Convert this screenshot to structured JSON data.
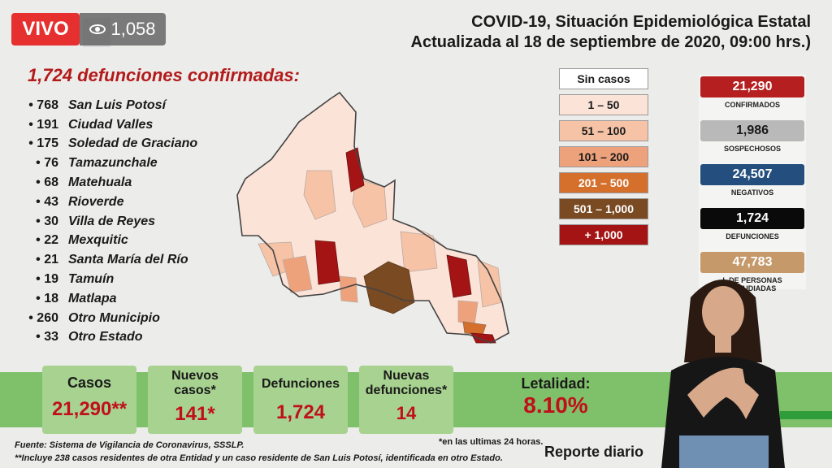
{
  "stream": {
    "live_label": "VIVO",
    "viewers": "1,058"
  },
  "header": {
    "line1": "COVID-19, Situación Epidemiológica Estatal",
    "line2": "Actualizada al 18 de septiembre de 2020, 09:00 hrs.)"
  },
  "deaths": {
    "heading": "1,724 defunciones confirmadas:",
    "items": [
      {
        "count": "768",
        "name": "San Luis Potosí"
      },
      {
        "count": "191",
        "name": "Ciudad Valles"
      },
      {
        "count": "175",
        "name": "Soledad de Graciano"
      },
      {
        "count": "76",
        "name": "Tamazunchale"
      },
      {
        "count": "68",
        "name": "Matehuala"
      },
      {
        "count": "43",
        "name": "Rioverde"
      },
      {
        "count": "30",
        "name": "Villa de Reyes"
      },
      {
        "count": "22",
        "name": "Mexquitic"
      },
      {
        "count": "21",
        "name": "Santa María del Río"
      },
      {
        "count": "19",
        "name": "Tamuín"
      },
      {
        "count": "18",
        "name": "Matlapa"
      },
      {
        "count": "260",
        "name": "Otro Municipio"
      },
      {
        "count": "33",
        "name": "Otro Estado"
      }
    ]
  },
  "legend": {
    "items": [
      {
        "label": "Sin casos",
        "color": "#ffffff",
        "text": "#1a1a1a"
      },
      {
        "label": "1 – 50",
        "color": "#fbe3d8",
        "text": "#1a1a1a"
      },
      {
        "label": "51 – 100",
        "color": "#f6c3a6",
        "text": "#1a1a1a"
      },
      {
        "label": "101 – 200",
        "color": "#eea27c",
        "text": "#1a1a1a"
      },
      {
        "label": "201 – 500",
        "color": "#d5702c",
        "text": "#ffffff"
      },
      {
        "label": "501 – 1,000",
        "color": "#7a4a22",
        "text": "#ffffff"
      },
      {
        "label": "+ 1,000",
        "color": "#a51414",
        "text": "#ffffff"
      }
    ]
  },
  "stats": [
    {
      "value": "21,290",
      "label": "CONFIRMADOS",
      "color": "#b51f1f"
    },
    {
      "value": "1,986",
      "label": "SOSPECHOSOS",
      "color": "#b9b9b9",
      "text": "#1a1a1a"
    },
    {
      "value": "24,507",
      "label": "NEGATIVOS",
      "color": "#244e7d"
    },
    {
      "value": "1,724",
      "label": "DEFUNCIONES",
      "color": "#0a0a0a"
    },
    {
      "value": "47,783",
      "label": "L DE PERSONAS ESTUDIADAS",
      "color": "#c5996a"
    }
  ],
  "summary": {
    "cases_label": "Casos",
    "cases_value": "21,290**",
    "new_cases_label": "Nuevos casos*",
    "new_cases_value": "141*",
    "deaths_label": "Defunciones",
    "deaths_value": "1,724",
    "new_deaths_label": "Nuevas defunciones*",
    "new_deaths_value": "14",
    "lethality_label": "Letalidad:",
    "lethality_value": "8.10%"
  },
  "footer": {
    "source": "Fuente: Sistema de Vigilancia de Coronavirus, SSSLP.",
    "note": "**Incluye 238 casos residentes de otra Entidad y un caso residente de San Luis Potosí, identificada en otro Estado.",
    "footnote": "*en las ultimas 24 horas.",
    "report": "Reporte diario"
  }
}
